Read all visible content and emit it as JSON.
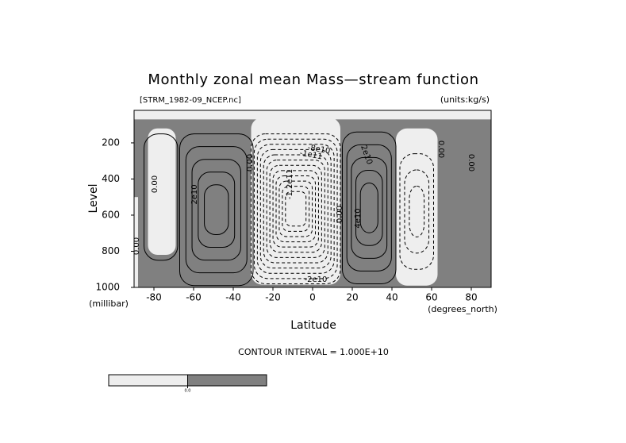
{
  "chart_data": {
    "type": "contour",
    "title": "Monthly zonal mean Mass—stream function",
    "subtitle": "[STRM_1982-09_NCEP.nc]",
    "units": "(units:kg/s)",
    "xlabel": "Latitude",
    "ylabel": "Level",
    "x_unit": "(degrees_north)",
    "y_unit": "(millibar)",
    "footer": "CONTOUR INTERVAL = 1.000E+10",
    "xlim": [
      -90,
      90
    ],
    "ylim": [
      1000,
      20
    ],
    "xticks": [
      -80,
      -60,
      -40,
      -20,
      0,
      20,
      40,
      60,
      80
    ],
    "yticks": [
      200,
      400,
      600,
      800,
      1000
    ],
    "colors": {
      "negative": "#eeeeee",
      "positive": "#808080"
    },
    "colorbar_ticks": [
      {
        "value": 0,
        "label": "0.0"
      }
    ],
    "contour_labels": [
      {
        "value": 0,
        "label": "0.00"
      },
      {
        "value": 20000000000,
        "label": "2e10"
      },
      {
        "value": 0,
        "label": "0.00"
      },
      {
        "value": 0,
        "label": "0.00"
      },
      {
        "value": -120000000000,
        "label": "-1.2e11"
      },
      {
        "value": -100000000000,
        "label": "-1e11"
      },
      {
        "value": -80000000000,
        "label": "-8e10"
      },
      {
        "value": 0,
        "label": "0.00"
      },
      {
        "value": 20000000000,
        "label": "2e10"
      },
      {
        "value": 40000000000,
        "label": "4e10"
      },
      {
        "value": 0,
        "label": "0.00"
      },
      {
        "value": 0,
        "label": "0.00"
      },
      {
        "value": -20000000000,
        "label": "-2e10"
      }
    ]
  }
}
